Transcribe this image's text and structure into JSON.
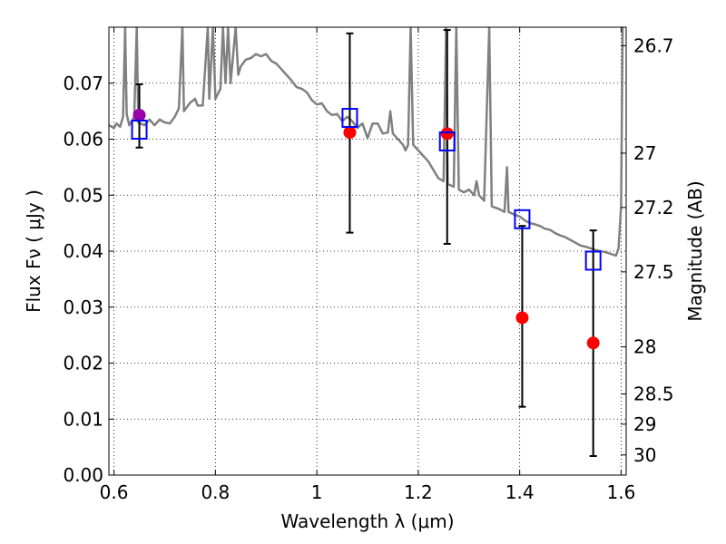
{
  "chart_data": {
    "type": "scatter",
    "title": "",
    "xlabel": "Wavelength  λ (μm)",
    "ylabel": "Flux  Fν  ( μJy )",
    "ylabel2": "Magnitude (AB)",
    "xlim": [
      0.59,
      1.61
    ],
    "ylim": [
      0.0,
      0.08
    ],
    "grid": true,
    "x_ticks": [
      0.6,
      0.8,
      1.0,
      1.2,
      1.4,
      1.6
    ],
    "x_tick_labels": [
      "0.6",
      "0.8",
      "1",
      "1.2",
      "1.4",
      "1.6"
    ],
    "y_ticks": [
      0.0,
      0.01,
      0.02,
      0.03,
      0.04,
      0.05,
      0.06,
      0.07
    ],
    "y_tick_labels": [
      "0.00",
      "0.01",
      "0.02",
      "0.03",
      "0.04",
      "0.05",
      "0.06",
      "0.07"
    ],
    "mag_ticks": [
      {
        "label": "26.7",
        "flux": 0.0767
      },
      {
        "label": "27",
        "flux": 0.0575
      },
      {
        "label": "27.2",
        "flux": 0.0478
      },
      {
        "label": "27.5",
        "flux": 0.0363
      },
      {
        "label": "28",
        "flux": 0.0229
      },
      {
        "label": "28.5",
        "flux": 0.0145
      },
      {
        "label": "29",
        "flux": 0.0091
      },
      {
        "label": "30",
        "flux": 0.0036
      }
    ],
    "series": [
      {
        "marker": "circle",
        "color": "#9900aa",
        "points": [
          {
            "x": 0.65,
            "y": 0.0643,
            "ylo": 0.0585,
            "yhi": 0.0698
          }
        ]
      },
      {
        "marker": "circle",
        "color": "#ff0000",
        "points": [
          {
            "x": 1.065,
            "y": 0.0612,
            "ylo": 0.0433,
            "yhi": 0.0789
          },
          {
            "x": 1.257,
            "y": 0.061,
            "ylo": 0.0413,
            "yhi": 0.0795
          },
          {
            "x": 1.405,
            "y": 0.0281,
            "ylo": 0.0122,
            "yhi": 0.0445
          },
          {
            "x": 1.545,
            "y": 0.0236,
            "ylo": 0.0034,
            "yhi": 0.0437
          }
        ]
      },
      {
        "marker": "square",
        "color": "#0000ff",
        "points": [
          {
            "x": 0.65,
            "y": 0.0617
          },
          {
            "x": 1.065,
            "y": 0.0638
          },
          {
            "x": 1.257,
            "y": 0.0596
          },
          {
            "x": 1.405,
            "y": 0.0457
          },
          {
            "x": 1.545,
            "y": 0.0383
          }
        ]
      },
      {
        "type": "line",
        "color": "#808080",
        "points": [
          [
            0.59,
            0.0625
          ],
          [
            0.6,
            0.062
          ],
          [
            0.605,
            0.0628
          ],
          [
            0.612,
            0.0622
          ],
          [
            0.618,
            0.064
          ],
          [
            0.622,
            0.08
          ],
          [
            0.625,
            0.0645
          ],
          [
            0.63,
            0.0625
          ],
          [
            0.64,
            0.064
          ],
          [
            0.645,
            0.08
          ],
          [
            0.648,
            0.063
          ],
          [
            0.66,
            0.0625
          ],
          [
            0.67,
            0.0635
          ],
          [
            0.68,
            0.0625
          ],
          [
            0.69,
            0.0635
          ],
          [
            0.7,
            0.063
          ],
          [
            0.71,
            0.0628
          ],
          [
            0.72,
            0.064
          ],
          [
            0.728,
            0.0655
          ],
          [
            0.735,
            0.08
          ],
          [
            0.738,
            0.065
          ],
          [
            0.75,
            0.0665
          ],
          [
            0.76,
            0.0672
          ],
          [
            0.765,
            0.066
          ],
          [
            0.775,
            0.066
          ],
          [
            0.785,
            0.08
          ],
          [
            0.788,
            0.0672
          ],
          [
            0.795,
            0.08
          ],
          [
            0.8,
            0.0672
          ],
          [
            0.81,
            0.069
          ],
          [
            0.815,
            0.08
          ],
          [
            0.82,
            0.07
          ],
          [
            0.825,
            0.08
          ],
          [
            0.83,
            0.07
          ],
          [
            0.84,
            0.08
          ],
          [
            0.845,
            0.0715
          ],
          [
            0.85,
            0.073
          ],
          [
            0.86,
            0.0742
          ],
          [
            0.87,
            0.0745
          ],
          [
            0.88,
            0.0752
          ],
          [
            0.89,
            0.0748
          ],
          [
            0.9,
            0.0752
          ],
          [
            0.91,
            0.074
          ],
          [
            0.92,
            0.0735
          ],
          [
            0.93,
            0.0725
          ],
          [
            0.94,
            0.0715
          ],
          [
            0.95,
            0.0705
          ],
          [
            0.96,
            0.0693
          ],
          [
            0.97,
            0.069
          ],
          [
            0.98,
            0.0684
          ],
          [
            0.99,
            0.067
          ],
          [
            1.0,
            0.0662
          ],
          [
            1.01,
            0.0664
          ],
          [
            1.02,
            0.065
          ],
          [
            1.03,
            0.0643
          ],
          [
            1.04,
            0.0645
          ],
          [
            1.05,
            0.0632
          ],
          [
            1.06,
            0.064
          ],
          [
            1.07,
            0.0632
          ],
          [
            1.08,
            0.062
          ],
          [
            1.09,
            0.0628
          ],
          [
            1.1,
            0.0602
          ],
          [
            1.11,
            0.0628
          ],
          [
            1.12,
            0.0628
          ],
          [
            1.13,
            0.061
          ],
          [
            1.14,
            0.0612
          ],
          [
            1.145,
            0.065
          ],
          [
            1.15,
            0.061
          ],
          [
            1.16,
            0.06
          ],
          [
            1.17,
            0.059
          ],
          [
            1.175,
            0.058
          ],
          [
            1.18,
            0.059
          ],
          [
            1.185,
            0.08
          ],
          [
            1.19,
            0.059
          ],
          [
            1.2,
            0.058
          ],
          [
            1.21,
            0.057
          ],
          [
            1.22,
            0.056
          ],
          [
            1.23,
            0.0545
          ],
          [
            1.24,
            0.053
          ],
          [
            1.25,
            0.0525
          ],
          [
            1.255,
            0.08
          ],
          [
            1.258,
            0.052
          ],
          [
            1.27,
            0.0515
          ],
          [
            1.275,
            0.08
          ],
          [
            1.28,
            0.051
          ],
          [
            1.29,
            0.0505
          ],
          [
            1.3,
            0.051
          ],
          [
            1.31,
            0.05
          ],
          [
            1.315,
            0.0525
          ],
          [
            1.32,
            0.05
          ],
          [
            1.33,
            0.049
          ],
          [
            1.34,
            0.08
          ],
          [
            1.345,
            0.048
          ],
          [
            1.36,
            0.0475
          ],
          [
            1.37,
            0.047
          ],
          [
            1.375,
            0.055
          ],
          [
            1.378,
            0.047
          ],
          [
            1.39,
            0.0465
          ],
          [
            1.4,
            0.0462
          ],
          [
            1.41,
            0.0455
          ],
          [
            1.42,
            0.045
          ],
          [
            1.43,
            0.0448
          ],
          [
            1.44,
            0.0445
          ],
          [
            1.45,
            0.044
          ],
          [
            1.46,
            0.0438
          ],
          [
            1.47,
            0.0432
          ],
          [
            1.48,
            0.0428
          ],
          [
            1.49,
            0.0425
          ],
          [
            1.5,
            0.042
          ],
          [
            1.51,
            0.0415
          ],
          [
            1.52,
            0.041
          ],
          [
            1.53,
            0.0408
          ],
          [
            1.54,
            0.0405
          ],
          [
            1.55,
            0.0402
          ],
          [
            1.56,
            0.04
          ],
          [
            1.57,
            0.0398
          ],
          [
            1.58,
            0.0395
          ],
          [
            1.59,
            0.0392
          ],
          [
            1.595,
            0.0405
          ],
          [
            1.6,
            0.048
          ],
          [
            1.603,
            0.08
          ]
        ]
      }
    ]
  }
}
